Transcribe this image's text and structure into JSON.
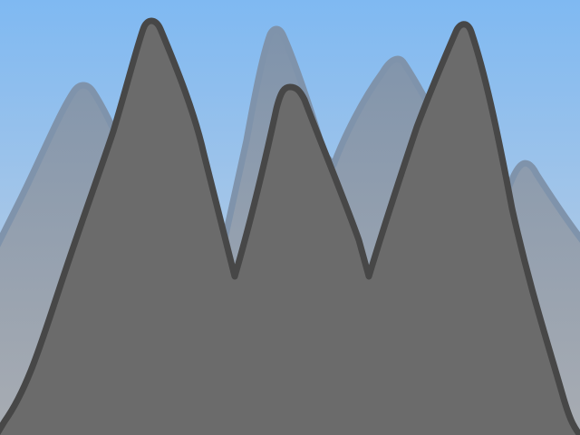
{
  "scene": {
    "kind": "mountain-range-background",
    "sky": {
      "top_color": "#7fb9f2",
      "bottom_color": "#c9d2de"
    },
    "back_range": {
      "fill_top": "#7f93ab",
      "fill_bottom": "#a9adb3",
      "outline_color": "#7f93ab",
      "peak_count": 4
    },
    "front_range": {
      "fill": "#6b6b6b",
      "outline_color": "#474747",
      "peak_count": 3
    }
  }
}
